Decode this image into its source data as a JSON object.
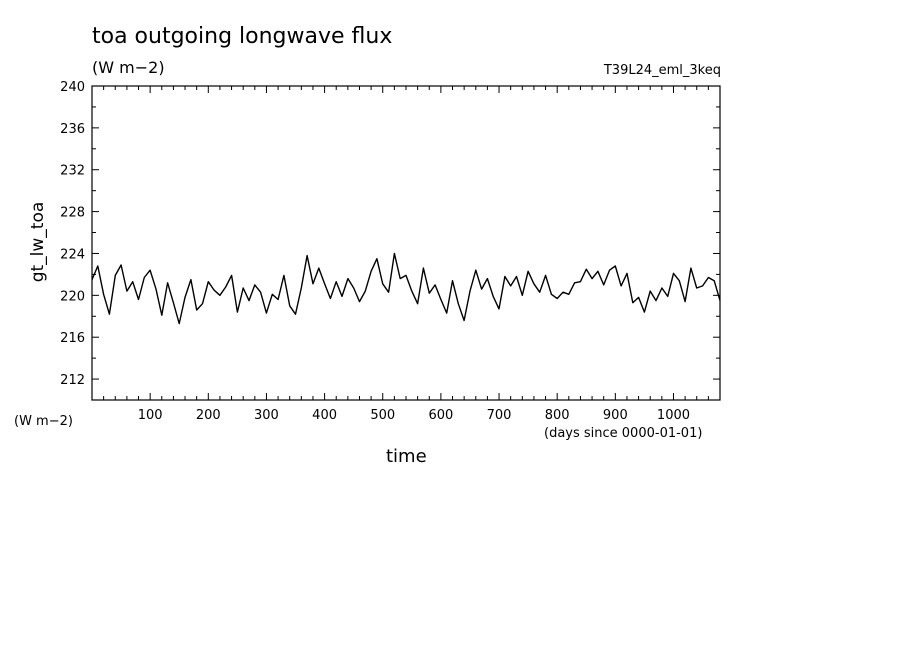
{
  "header": {
    "title": "toa outgoing longwave flux",
    "units": "(W m−2)",
    "run": "T39L24_eml_3keq"
  },
  "axes": {
    "ylabel": "gt_lw_toa",
    "xlabel": "time",
    "y_units_note": "(W m−2)",
    "x_units_note": "(days since 0000-01-01)"
  },
  "chart_data": {
    "type": "line",
    "title": "toa outgoing longwave flux",
    "subtitle": "(W m−2)",
    "xlabel": "time",
    "ylabel": "gt_lw_toa",
    "xlim": [
      0,
      1080
    ],
    "ylim": [
      210,
      240
    ],
    "x_ticks": [
      100,
      200,
      300,
      400,
      500,
      600,
      700,
      800,
      900,
      1000
    ],
    "y_ticks": [
      212,
      216,
      220,
      224,
      228,
      232,
      236,
      240
    ],
    "grid": false,
    "series": [
      {
        "x": [
          0,
          10,
          20,
          30,
          40,
          50,
          60,
          70,
          80,
          90,
          100,
          110,
          120,
          130,
          140,
          150,
          160,
          170,
          180,
          190,
          200,
          210,
          220,
          230,
          240,
          250,
          260,
          270,
          280,
          290,
          300,
          310,
          320,
          330,
          340,
          350,
          360,
          370,
          380,
          390,
          400,
          410,
          420,
          430,
          440,
          450,
          460,
          470,
          480,
          490,
          500,
          510,
          520,
          530,
          540,
          550,
          560,
          570,
          580,
          590,
          600,
          610,
          620,
          630,
          640,
          650,
          660,
          670,
          680,
          690,
          700,
          710,
          720,
          730,
          740,
          750,
          760,
          770,
          780,
          790,
          800,
          810,
          820,
          830,
          840,
          850,
          860,
          870,
          880,
          890,
          900,
          910,
          920,
          930,
          940,
          950,
          960,
          970,
          980,
          990,
          1000,
          1010,
          1020,
          1030,
          1040,
          1050,
          1060,
          1070,
          1080
        ],
        "values": [
          221.5,
          222.8,
          220.1,
          218.2,
          221.9,
          222.9,
          220.4,
          221.3,
          219.6,
          221.7,
          222.4,
          220.6,
          218.1,
          221.2,
          219.3,
          217.3,
          219.8,
          221.5,
          218.6,
          219.2,
          221.3,
          220.5,
          220.0,
          220.8,
          221.9,
          218.4,
          220.7,
          219.5,
          221.0,
          220.3,
          218.3,
          220.1,
          219.6,
          221.9,
          219.0,
          218.2,
          220.7,
          223.8,
          221.1,
          222.6,
          221.1,
          219.7,
          221.3,
          219.9,
          221.6,
          220.7,
          219.4,
          220.4,
          222.3,
          223.5,
          221.1,
          220.3,
          224.0,
          221.6,
          221.9,
          220.4,
          219.2,
          222.6,
          220.2,
          221.0,
          219.6,
          218.3,
          221.4,
          219.2,
          217.6,
          220.4,
          222.4,
          220.6,
          221.6,
          219.9,
          218.7,
          221.8,
          220.9,
          221.8,
          220.0,
          222.3,
          221.1,
          220.3,
          221.9,
          220.1,
          219.7,
          220.3,
          220.1,
          221.2,
          221.3,
          222.5,
          221.6,
          222.3,
          221.0,
          222.4,
          222.8,
          220.9,
          222.1,
          219.3,
          219.8,
          218.4,
          220.4,
          219.5,
          220.7,
          219.9,
          222.1,
          221.4,
          219.4,
          222.6,
          220.7,
          220.9,
          221.7,
          221.4,
          219.5
        ]
      }
    ]
  }
}
